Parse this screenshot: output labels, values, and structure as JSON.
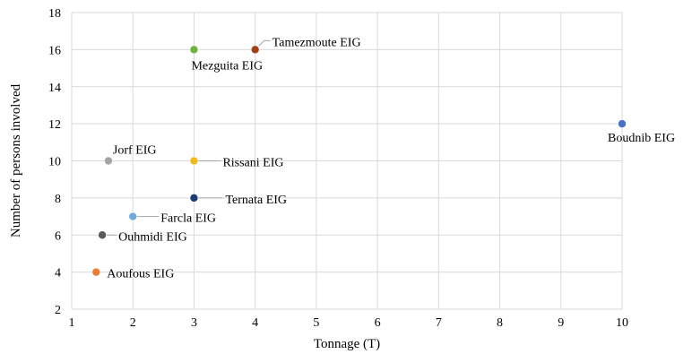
{
  "chart_data": {
    "type": "scatter",
    "title": "",
    "xlabel": "Tonnage (T)",
    "ylabel": "Number of persons involved",
    "xlim": [
      1,
      10
    ],
    "ylim": [
      2,
      18
    ],
    "xticks": [
      1,
      2,
      3,
      4,
      5,
      6,
      7,
      8,
      9,
      10
    ],
    "yticks": [
      2,
      4,
      6,
      8,
      10,
      12,
      14,
      16,
      18
    ],
    "grid": true,
    "legend": "none",
    "points": [
      {
        "label": "Tamezmoute EIG",
        "x": 4,
        "y": 16,
        "color": "#a0401a"
      },
      {
        "label": "Mezguita EIG",
        "x": 3,
        "y": 16,
        "color": "#6db33f"
      },
      {
        "label": "Boudnib EIG",
        "x": 10,
        "y": 12,
        "color": "#4472c4"
      },
      {
        "label": "Jorf EIG",
        "x": 1.6,
        "y": 10,
        "color": "#a5a5a5"
      },
      {
        "label": "Rissani EIG",
        "x": 3,
        "y": 10,
        "color": "#f2b81c"
      },
      {
        "label": "Ternata EIG",
        "x": 3,
        "y": 8,
        "color": "#1f3b73"
      },
      {
        "label": "Farcla EIG",
        "x": 2,
        "y": 7,
        "color": "#6fa8dc"
      },
      {
        "label": "Ouhmidi EIG",
        "x": 1.5,
        "y": 6,
        "color": "#595959"
      },
      {
        "label": "Aoufous EIG",
        "x": 1.4,
        "y": 4,
        "color": "#ed7d31"
      }
    ]
  }
}
